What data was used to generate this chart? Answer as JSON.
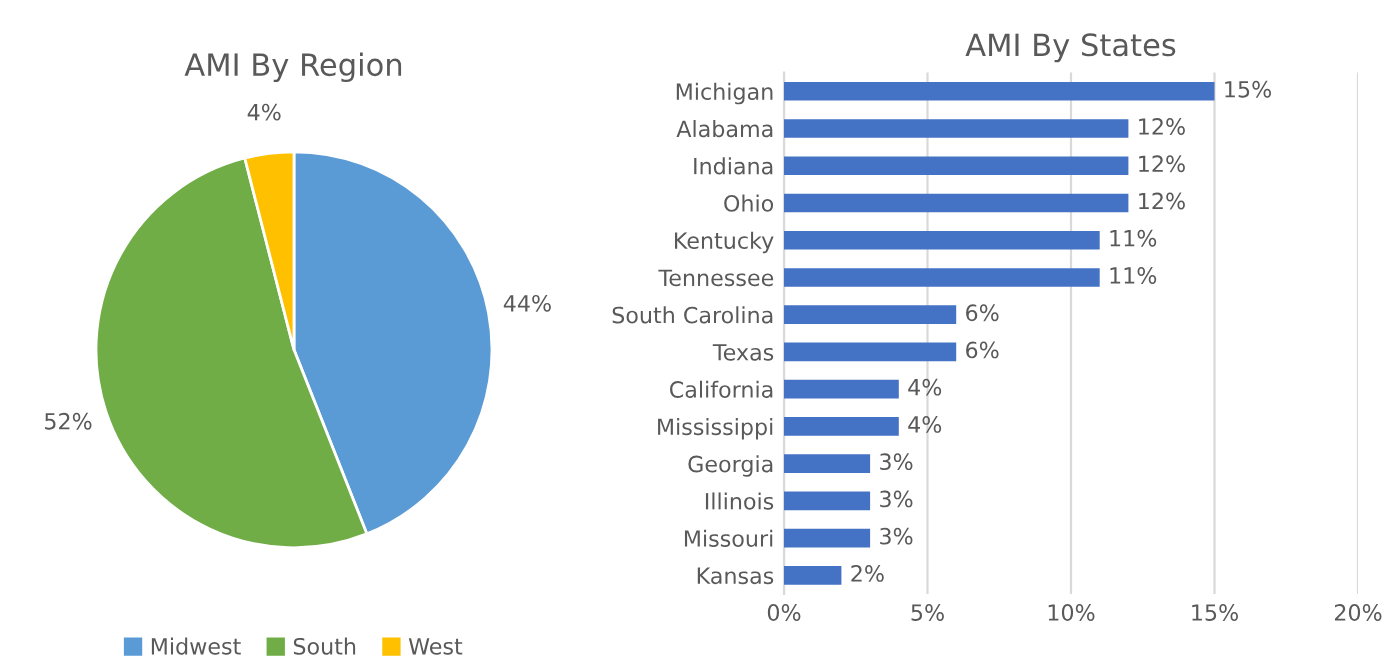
{
  "chart_data": [
    {
      "type": "pie",
      "title": "AMI By Region",
      "categories": [
        "Midwest",
        "South",
        "West"
      ],
      "values": [
        44,
        52,
        4
      ],
      "colors": [
        "#5b9bd5",
        "#70ad47",
        "#ffc000"
      ],
      "value_labels": [
        "44%",
        "52%",
        "4%"
      ],
      "legend": "bottom"
    },
    {
      "type": "bar",
      "orientation": "horizontal",
      "title": "AMI By States",
      "categories": [
        "Michigan",
        "Alabama",
        "Indiana",
        "Ohio",
        "Kentucky",
        "Tennessee",
        "South Carolina",
        "Texas",
        "California",
        "Mississippi",
        "Georgia",
        "Illinois",
        "Missouri",
        "Kansas"
      ],
      "values": [
        15,
        12,
        12,
        12,
        11,
        11,
        6,
        6,
        4,
        4,
        3,
        3,
        3,
        2
      ],
      "value_labels": [
        "15%",
        "12%",
        "12%",
        "12%",
        "11%",
        "11%",
        "6%",
        "6%",
        "4%",
        "4%",
        "3%",
        "3%",
        "3%",
        "2%"
      ],
      "color": "#4472c4",
      "xlim": [
        0,
        20
      ],
      "xticks": [
        {
          "value": 0,
          "label": "0%"
        },
        {
          "value": 5,
          "label": "5%"
        },
        {
          "value": 10,
          "label": "10%"
        },
        {
          "value": 15,
          "label": "15%"
        },
        {
          "value": 20,
          "label": "20%"
        }
      ],
      "grid": "x"
    }
  ]
}
